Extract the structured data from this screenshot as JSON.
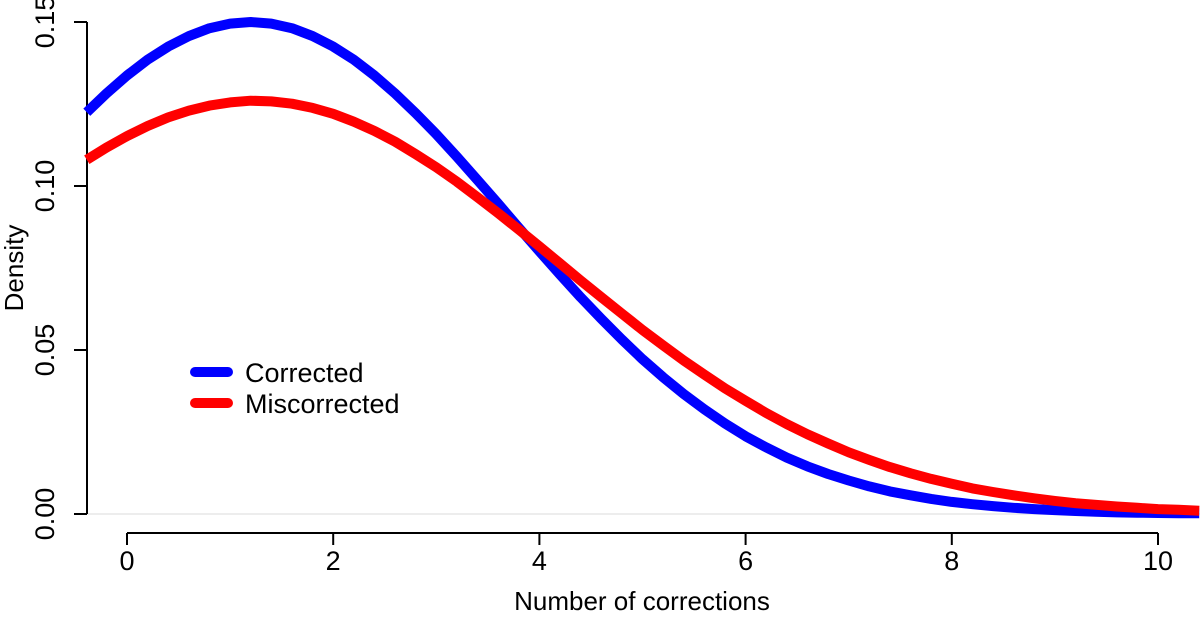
{
  "figure": {
    "background_color": "#ffffff",
    "axis_color": "#000000",
    "baseline_color": "#ededed",
    "text_color": "#000000"
  },
  "chart_data": {
    "type": "line",
    "title": "",
    "xlabel": "Number of corrections",
    "ylabel": "Density",
    "xlim": [
      -0.39,
      10.4
    ],
    "ylim": [
      0,
      0.15
    ],
    "xticks": [
      0,
      2,
      4,
      6,
      8,
      10
    ],
    "yticks": {
      "values": [
        0,
        0.05,
        0.1,
        0.15
      ],
      "labels": [
        "0.00",
        "0.05",
        "0.10",
        "0.15"
      ]
    },
    "grid": false,
    "legend_position": "inside-left-middle",
    "series": [
      {
        "name": "Corrected",
        "color": "#0000ff",
        "x": [
          -0.39,
          -0.2,
          0,
          0.2,
          0.4,
          0.6,
          0.8,
          1,
          1.2,
          1.4,
          1.6,
          1.8,
          2,
          2.2,
          2.4,
          2.6,
          2.8,
          3,
          3.2,
          3.4,
          3.6,
          3.8,
          4,
          4.2,
          4.4,
          4.6,
          4.8,
          5,
          5.2,
          5.4,
          5.6,
          5.8,
          6,
          6.2,
          6.4,
          6.6,
          6.8,
          7,
          7.2,
          7.4,
          7.6,
          7.8,
          8,
          8.2,
          8.4,
          8.6,
          8.8,
          9,
          9.2,
          9.4,
          9.6,
          9.8,
          10,
          10.2,
          10.4
        ],
        "y": [
          0.1225,
          0.1282,
          0.1337,
          0.1385,
          0.1425,
          0.1457,
          0.1481,
          0.1495,
          0.15,
          0.1495,
          0.1481,
          0.1457,
          0.1425,
          0.1385,
          0.1337,
          0.1282,
          0.1222,
          0.1158,
          0.1089,
          0.1018,
          0.0946,
          0.0873,
          0.0801,
          0.073,
          0.0661,
          0.0595,
          0.0532,
          0.0472,
          0.0417,
          0.0366,
          0.0319,
          0.0276,
          0.0237,
          0.0203,
          0.0172,
          0.0145,
          0.0122,
          0.0102,
          0.0084,
          0.0069,
          0.0057,
          0.0046,
          0.0037,
          0.003,
          0.0024,
          0.0019,
          0.0015,
          0.0012,
          0.0009,
          0.0007,
          0.0005,
          0.0004,
          0.0003,
          0.0002,
          0.0002
        ]
      },
      {
        "name": "Miscorrected",
        "color": "#ff0000",
        "x": [
          -0.39,
          -0.2,
          0,
          0.2,
          0.4,
          0.6,
          0.8,
          1,
          1.2,
          1.4,
          1.6,
          1.8,
          2,
          2.2,
          2.4,
          2.6,
          2.8,
          3,
          3.2,
          3.4,
          3.6,
          3.8,
          4,
          4.2,
          4.4,
          4.6,
          4.8,
          5,
          5.2,
          5.4,
          5.6,
          5.8,
          6,
          6.2,
          6.4,
          6.6,
          6.8,
          7,
          7.2,
          7.4,
          7.6,
          7.8,
          8,
          8.2,
          8.4,
          8.6,
          8.8,
          9,
          9.2,
          9.4,
          9.6,
          9.8,
          10,
          10.2,
          10.4
        ],
        "y": [
          0.108,
          0.1117,
          0.1152,
          0.1183,
          0.1209,
          0.123,
          0.1245,
          0.1255,
          0.126,
          0.1258,
          0.1251,
          0.1238,
          0.122,
          0.1196,
          0.1168,
          0.1135,
          0.1097,
          0.1057,
          0.1013,
          0.0966,
          0.0917,
          0.0867,
          0.0816,
          0.0764,
          0.0712,
          0.0661,
          0.0611,
          0.0561,
          0.0514,
          0.0468,
          0.0425,
          0.0383,
          0.0345,
          0.0308,
          0.0274,
          0.0243,
          0.0215,
          0.0188,
          0.0165,
          0.0143,
          0.0124,
          0.0107,
          0.0092,
          0.0078,
          0.0067,
          0.0057,
          0.0048,
          0.004,
          0.0033,
          0.0028,
          0.0023,
          0.0019,
          0.0015,
          0.0013,
          0.001
        ]
      }
    ]
  },
  "legend": {
    "items": [
      {
        "label": "Corrected",
        "color": "#0000ff"
      },
      {
        "label": "Miscorrected",
        "color": "#ff0000"
      }
    ]
  }
}
